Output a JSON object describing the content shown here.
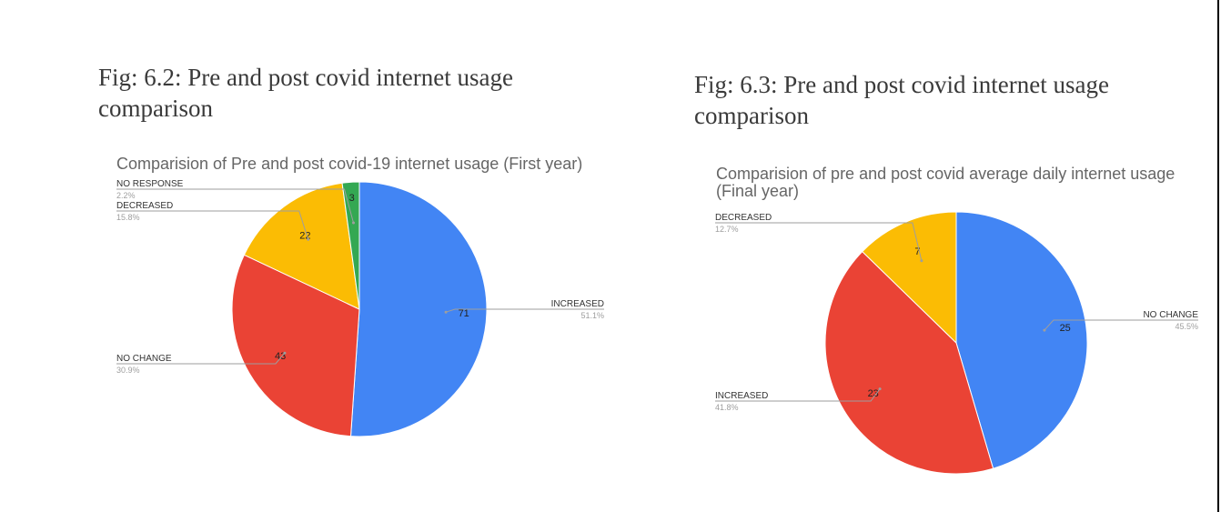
{
  "figures": [
    {
      "caption": "Fig: 6.2: Pre and post covid internet usage comparison"
    },
    {
      "caption": "Fig: 6.3: Pre and post covid internet usage comparison"
    }
  ],
  "chart_data": [
    {
      "type": "pie",
      "title": "Comparision of Pre and post covid-19 internet usage (First year)",
      "slices": [
        {
          "label": "INCREASED",
          "value": 71,
          "percent": "51.1%",
          "color": "#4285F4"
        },
        {
          "label": "NO CHANGE",
          "value": 43,
          "percent": "30.9%",
          "color": "#EA4335"
        },
        {
          "label": "DECREASED",
          "value": 22,
          "percent": "15.8%",
          "color": "#FBBC04"
        },
        {
          "label": "NO RESPONSE",
          "value": 3,
          "percent": "2.2%",
          "color": "#34A853"
        }
      ],
      "legend": "none"
    },
    {
      "type": "pie",
      "title": "Comparision of pre and post covid average daily internet usage (Final year)",
      "slices": [
        {
          "label": "NO CHANGE",
          "value": 25,
          "percent": "45.5%",
          "color": "#4285F4"
        },
        {
          "label": "INCREASED",
          "value": 23,
          "percent": "41.8%",
          "color": "#EA4335"
        },
        {
          "label": "DECREASED",
          "value": 7,
          "percent": "12.7%",
          "color": "#FBBC04"
        }
      ],
      "legend": "none"
    }
  ]
}
